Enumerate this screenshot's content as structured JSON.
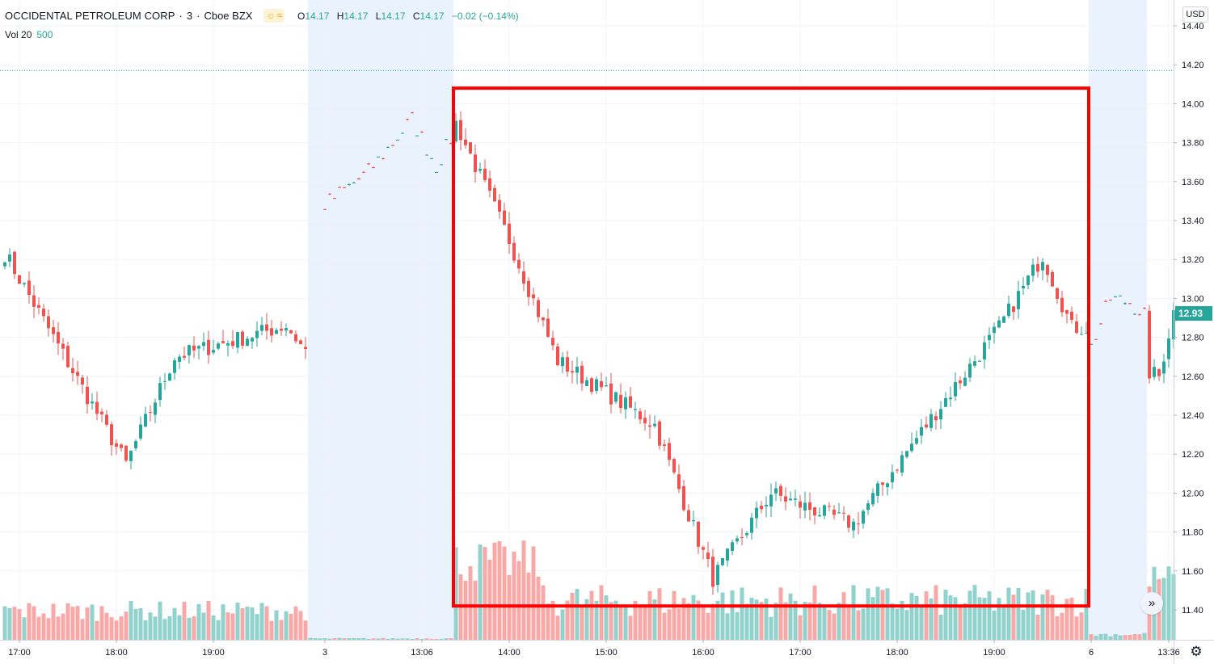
{
  "legend": {
    "symbol": "OCCIDENTAL PETROLEUM CORP",
    "interval": "3",
    "exchange": "Cboe BZX",
    "ohlc": {
      "o_key": "O",
      "o": "14.17",
      "h_key": "H",
      "h": "14.17",
      "l_key": "L",
      "l": "14.17",
      "c_key": "C",
      "c": "14.17",
      "change": "−0.02 (−0.14%)"
    },
    "volume_label": "Vol 20",
    "volume_value": "500",
    "session_icons": [
      "sun-icon",
      "wave-icon"
    ]
  },
  "scale": {
    "currency": "USD",
    "last_price": "12.93"
  },
  "colors": {
    "up": "#26a69a",
    "down": "#ef5350",
    "up_vol": "#92d2cc",
    "down_vol": "#f7a9a7",
    "ext_session": "#eaf3fd",
    "highlight": "#ff0000"
  },
  "icons": {
    "scroll": "double-chevron-right-icon",
    "settings": "gear-icon"
  },
  "chart_data": {
    "type": "candlestick",
    "y_ticks": [
      "11.40",
      "11.60",
      "11.80",
      "12.00",
      "12.20",
      "12.40",
      "12.60",
      "12.80",
      "13.00",
      "13.20",
      "13.40",
      "13.60",
      "13.80",
      "14.00",
      "14.20",
      "14.40"
    ],
    "ylim": [
      11.3,
      14.45
    ],
    "x_ticks": [
      {
        "label": "17:00",
        "bar": 3
      },
      {
        "label": "18:00",
        "bar": 23
      },
      {
        "label": "19:00",
        "bar": 43
      },
      {
        "label": "3",
        "bar": 66
      },
      {
        "label": "13:06",
        "bar": 86
      },
      {
        "label": "14:00",
        "bar": 104
      },
      {
        "label": "15:00",
        "bar": 124
      },
      {
        "label": "16:00",
        "bar": 144
      },
      {
        "label": "17:00",
        "bar": 164
      },
      {
        "label": "18:00",
        "bar": 184
      },
      {
        "label": "19:00",
        "bar": 204
      },
      {
        "label": "6",
        "bar": 224
      },
      {
        "label": "13:36",
        "bar": 240
      }
    ],
    "extended_sessions": [
      [
        63,
        93
      ],
      [
        224,
        236
      ]
    ],
    "highlight_box": {
      "from_bar": 93,
      "to_bar": 224,
      "high": 14.08,
      "low": 11.42
    },
    "reference_line": 14.17,
    "segments": [
      {
        "start": 0,
        "bars": 63,
        "from": 13.23,
        "to": 12.73,
        "points": [
          [
            10,
            12.8
          ],
          [
            25,
            12.15
          ],
          [
            35,
            12.7
          ],
          [
            58,
            12.86
          ]
        ]
      },
      {
        "start": 66,
        "bars": 27,
        "from": 13.48,
        "to": 13.82,
        "points": [
          [
            75,
            13.65
          ],
          [
            84,
            13.92
          ],
          [
            89,
            13.68
          ]
        ]
      },
      {
        "start": 93,
        "bars": 131,
        "from": 13.9,
        "to": 12.85,
        "points": [
          [
            104,
            13.3
          ],
          [
            114,
            12.68
          ],
          [
            134,
            12.35
          ],
          [
            146,
            11.56
          ],
          [
            158,
            12.0
          ],
          [
            165,
            11.93
          ],
          [
            175,
            11.84
          ],
          [
            190,
            12.35
          ],
          [
            205,
            12.85
          ],
          [
            214,
            13.22
          ],
          [
            220,
            12.85
          ]
        ]
      },
      {
        "start": 224,
        "bars": 13,
        "from": 12.75,
        "to": 12.9,
        "points": [
          [
            228,
            13.0
          ],
          [
            232,
            12.98
          ]
        ]
      },
      {
        "start": 236,
        "bars": 6,
        "from": 12.62,
        "to": 12.93,
        "points": [
          [
            238,
            12.6
          ]
        ]
      }
    ],
    "volume_max": 12000,
    "volume_profile": [
      {
        "start": 0,
        "end": 62,
        "base": 1400,
        "amp": 1500
      },
      {
        "start": 63,
        "end": 92,
        "base": 60,
        "amp": 80
      },
      {
        "start": 93,
        "end": 110,
        "base": 4200,
        "amp": 3200
      },
      {
        "start": 111,
        "end": 223,
        "base": 1700,
        "amp": 2400
      },
      {
        "start": 224,
        "end": 235,
        "base": 250,
        "amp": 300
      },
      {
        "start": 236,
        "end": 241,
        "base": 3600,
        "amp": 2000
      }
    ]
  }
}
